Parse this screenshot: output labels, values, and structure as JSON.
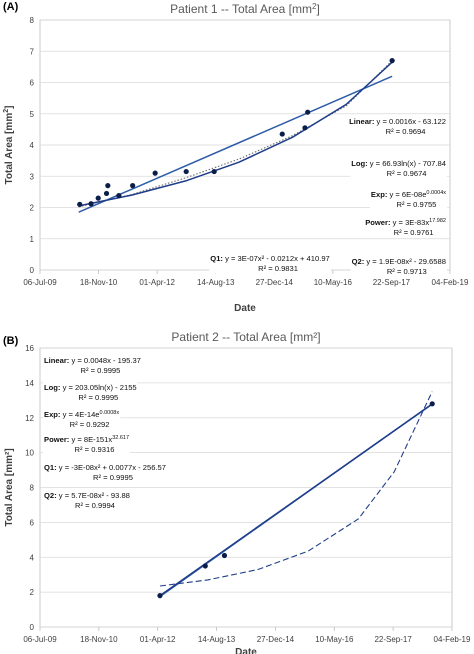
{
  "panels": [
    {
      "label": "(A)"
    },
    {
      "label": "(B)"
    }
  ],
  "chart_data": [
    {
      "type": "scatter",
      "title": "Patient 1 -- Total Area [mm²]",
      "title_parts": [
        "Patient 1 -- Total Area [mm",
        "2",
        "]"
      ],
      "xlabel": "Date",
      "ylabel_parts": [
        "Total Area [mm",
        "2",
        "]"
      ],
      "x_type": "date",
      "xlim": [
        "2009-07-06",
        "2019-02-04"
      ],
      "ylim": [
        0,
        8
      ],
      "ytick_step": 1,
      "grid": "horizontal",
      "x_ticks": [
        {
          "date": "2009-07-06",
          "label": "06-Jul-09"
        },
        {
          "date": "2010-11-18",
          "label": "18-Nov-10"
        },
        {
          "date": "2012-04-01",
          "label": "01-Apr-12"
        },
        {
          "date": "2013-08-14",
          "label": "14-Aug-13"
        },
        {
          "date": "2014-12-27",
          "label": "27-Dec-14"
        },
        {
          "date": "2016-05-10",
          "label": "10-May-16"
        },
        {
          "date": "2017-09-22",
          "label": "22-Sep-17"
        },
        {
          "date": "2019-02-04",
          "label": "04-Feb-19"
        }
      ],
      "series": [
        {
          "type": "scatter",
          "color": "#0b1e4a",
          "x": [
            "2010-06-10",
            "2010-09-15",
            "2010-11-15",
            "2011-01-25",
            "2011-02-05",
            "2011-05-10",
            "2011-09-05",
            "2012-03-15",
            "2012-12-05",
            "2013-08-01",
            "2015-03-05",
            "2015-09-15",
            "2015-10-08",
            "2017-09-28"
          ],
          "y": [
            2.1,
            2.12,
            2.3,
            2.45,
            2.7,
            2.38,
            2.7,
            3.1,
            3.15,
            3.15,
            4.35,
            4.55,
            5.05,
            6.7
          ]
        }
      ],
      "trendlines": [
        {
          "name": "Linear",
          "style": "solid",
          "color": "#2e5da8",
          "x": [
            "2010-06-01",
            "2017-09-28"
          ],
          "y": [
            1.85,
            6.2
          ]
        },
        {
          "name": "Exp",
          "style": "dotted",
          "color": "#6a6a6a",
          "x": [
            "2010-06-01",
            "2011-09-01",
            "2012-12-01",
            "2014-03-01",
            "2015-06-01",
            "2016-09-01",
            "2017-09-28"
          ],
          "y": [
            2.02,
            2.42,
            2.95,
            3.55,
            4.3,
            5.25,
            6.7
          ]
        },
        {
          "name": "Q1",
          "style": "solid",
          "color": "#1f3d8a",
          "x": [
            "2010-06-01",
            "2011-09-01",
            "2012-12-01",
            "2014-03-01",
            "2015-06-01",
            "2016-09-01",
            "2017-09-28"
          ],
          "y": [
            2.05,
            2.4,
            2.85,
            3.45,
            4.25,
            5.3,
            6.65
          ]
        }
      ],
      "annotations": [
        {
          "lines": [
            [
              {
                "t": "Linear:",
                "b": true
              },
              {
                "t": " y = 0.0016x - 63.122"
              }
            ],
            [
              {
                "t": "R² = 0.9694"
              }
            ]
          ],
          "anchor": "right-middle"
        },
        {
          "lines": [
            [
              {
                "t": "Log:",
                "b": true
              },
              {
                "t": " y = 66.93ln(x) - 707.84"
              }
            ],
            [
              {
                "t": "R² = 0.9674"
              }
            ]
          ],
          "anchor": "right-middle"
        },
        {
          "lines": [
            [
              {
                "t": "Exp:",
                "b": true
              },
              {
                "t": " y = 6E-08e"
              },
              {
                "t": "0.0004x",
                "sup": true
              }
            ],
            [
              {
                "t": "R² = 0.9755"
              }
            ]
          ],
          "anchor": "right-middle"
        },
        {
          "lines": [
            [
              {
                "t": "Power:",
                "b": true
              },
              {
                "t": " y = 3E-83x"
              },
              {
                "t": "17.982",
                "sup": true
              }
            ],
            [
              {
                "t": "R² = 0.9761"
              }
            ]
          ],
          "anchor": "right-middle"
        },
        {
          "lines": [
            [
              {
                "t": "Q2:",
                "b": true
              },
              {
                "t": " y = 1.9E-08x² - 29.6588"
              }
            ],
            [
              {
                "t": "R² = 0.9713"
              }
            ]
          ],
          "anchor": "right-bottom"
        },
        {
          "lines": [
            [
              {
                "t": "Q1:",
                "b": true
              },
              {
                "t": " y = 3E-07x² - 0.0212x + 410.97"
              }
            ],
            [
              {
                "t": "R² = 0.9831"
              }
            ]
          ],
          "anchor": "center-bottom"
        }
      ]
    },
    {
      "type": "scatter",
      "title": "Patient 2 -- Total Area [mm²]",
      "title_parts": [
        "Patient 2 -- Total Area [mm²]"
      ],
      "xlabel": "Date",
      "ylabel_parts": [
        "Total Area [mm²]"
      ],
      "x_type": "date",
      "xlim": [
        "2009-07-06",
        "2019-02-04"
      ],
      "ylim": [
        0,
        16
      ],
      "ytick_step": 2,
      "grid": "horizontal",
      "x_ticks": [
        {
          "date": "2009-07-06",
          "label": "06-Jul-09"
        },
        {
          "date": "2010-11-18",
          "label": "18-Nov-10"
        },
        {
          "date": "2012-04-01",
          "label": "01-Apr-12"
        },
        {
          "date": "2013-08-14",
          "label": "14-Aug-13"
        },
        {
          "date": "2014-12-27",
          "label": "27-Dec-14"
        },
        {
          "date": "2016-05-10",
          "label": "10-May-16"
        },
        {
          "date": "2017-09-22",
          "label": "22-Sep-17"
        },
        {
          "date": "2019-02-04",
          "label": "04-Feb-19"
        }
      ],
      "series": [
        {
          "type": "scatter",
          "color": "#0b1e4a",
          "x": [
            "2012-04-20",
            "2013-05-10",
            "2013-10-20",
            "2018-08-20"
          ],
          "y": [
            1.8,
            3.5,
            4.1,
            12.8
          ]
        }
      ],
      "trendlines": [
        {
          "name": "Linear",
          "style": "solid",
          "color": "#2e5da8",
          "x": [
            "2012-04-20",
            "2018-08-20"
          ],
          "y": [
            1.75,
            12.8
          ]
        },
        {
          "name": "Q1",
          "style": "solid",
          "color": "#1f3d8a",
          "x": [
            "2012-04-20",
            "2018-08-20"
          ],
          "y": [
            1.8,
            12.78
          ]
        },
        {
          "name": "Exp",
          "style": "dashed",
          "color": "#1f3d8a",
          "x": [
            "2012-04-20",
            "2013-06-01",
            "2014-08-01",
            "2015-10-01",
            "2016-12-01",
            "2017-10-01",
            "2018-08-20"
          ],
          "y": [
            2.35,
            2.7,
            3.3,
            4.35,
            6.2,
            8.9,
            13.5
          ]
        }
      ],
      "annotations": [
        {
          "lines": [
            [
              {
                "t": "Linear:",
                "b": true
              },
              {
                "t": " y = 0.0048x - 195.37"
              }
            ],
            [
              {
                "t": "R² = 0.9995"
              }
            ]
          ]
        },
        {
          "lines": [
            [
              {
                "t": "Log:",
                "b": true
              },
              {
                "t": " y = 203.05ln(x) - 2155"
              }
            ],
            [
              {
                "t": "R² = 0.9995"
              }
            ]
          ]
        },
        {
          "lines": [
            [
              {
                "t": "Exp:",
                "b": true
              },
              {
                "t": " y = 4E-14e"
              },
              {
                "t": "0.0008x",
                "sup": true
              }
            ],
            [
              {
                "t": "R² = 0.9292"
              }
            ]
          ]
        },
        {
          "lines": [
            [
              {
                "t": "Power:",
                "b": true
              },
              {
                "t": " y = 8E-151x"
              },
              {
                "t": "32.617",
                "sup": true
              }
            ],
            [
              {
                "t": "R² = 0.9316"
              }
            ]
          ]
        },
        {
          "lines": [
            [
              {
                "t": "Q1:",
                "b": true
              },
              {
                "t": " y = -3E-08x² + 0.0077x - 256.57"
              }
            ],
            [
              {
                "t": "R² = 0.9995"
              }
            ]
          ]
        },
        {
          "lines": [
            [
              {
                "t": "Q2:",
                "b": true
              },
              {
                "t": " y = 5.7E-08x² - 93.88"
              }
            ],
            [
              {
                "t": "R² = 0.9994"
              }
            ]
          ]
        }
      ]
    }
  ]
}
